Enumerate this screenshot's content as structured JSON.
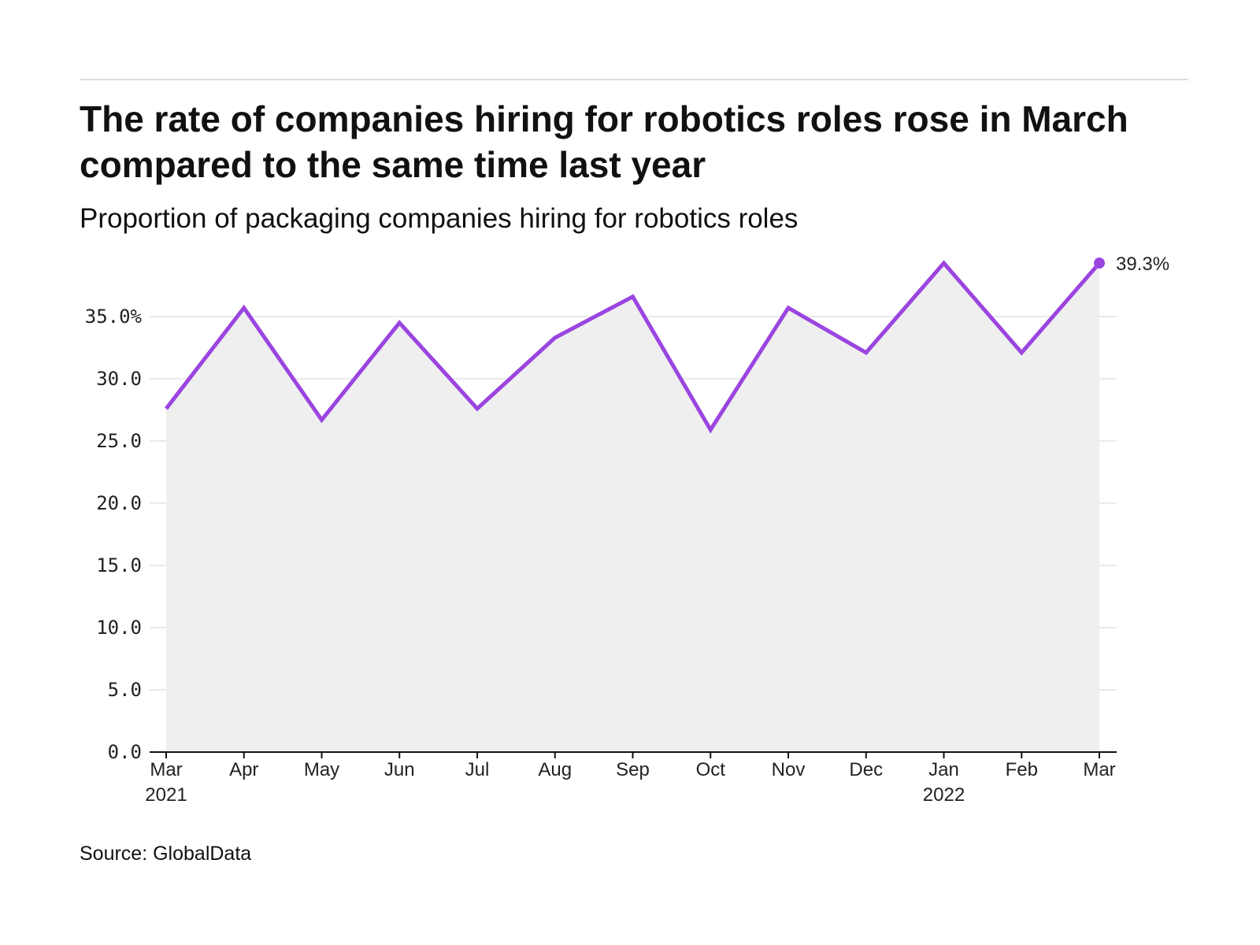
{
  "chart_data": {
    "type": "area",
    "title": "The rate of companies hiring for robotics roles rose in March compared to the same time last year",
    "subtitle": "Proportion of packaging companies hiring for robotics roles",
    "categories": [
      "Mar",
      "Apr",
      "May",
      "Jun",
      "Jul",
      "Aug",
      "Sep",
      "Oct",
      "Nov",
      "Dec",
      "Jan",
      "Feb",
      "Mar"
    ],
    "category_years": [
      "2021",
      "",
      "",
      "",
      "",
      "",
      "",
      "",
      "",
      "",
      "2022",
      "",
      ""
    ],
    "series": [
      {
        "values": [
          27.6,
          35.7,
          26.7,
          34.5,
          27.6,
          33.3,
          36.6,
          25.9,
          35.7,
          32.1,
          39.3,
          32.1,
          39.3
        ]
      }
    ],
    "end_label": "39.3%",
    "ylim": [
      0,
      40
    ],
    "y_ticks": [
      0,
      5,
      10,
      15,
      20,
      25,
      30,
      35
    ],
    "y_tick_labels": [
      "0.0",
      "5.0",
      "10.0",
      "15.0",
      "20.0",
      "25.0",
      "30.0",
      "35.0%"
    ],
    "xlabel": "",
    "ylabel": "",
    "grid": true,
    "colors": {
      "line": "#9b45e0",
      "area": "#efefef",
      "grid": "#e3e3e3",
      "axis": "#111111"
    }
  },
  "source": "Source: GlobalData"
}
